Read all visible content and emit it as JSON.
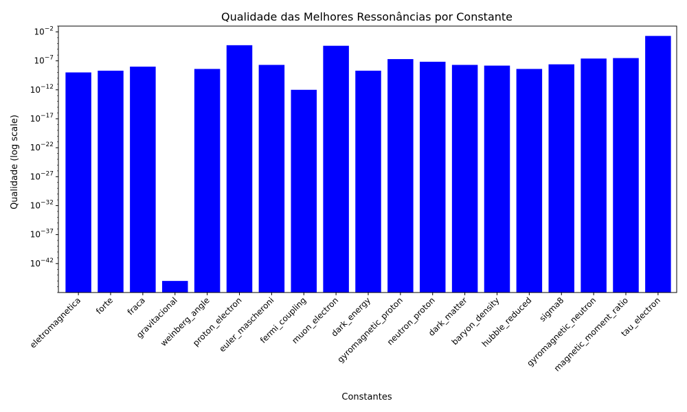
{
  "chart_data": {
    "type": "bar",
    "title": "Qualidade das Melhores Ressonâncias por Constante",
    "xlabel": "Constantes",
    "ylabel": "Qualidade (log scale)",
    "yscale": "log",
    "ylim": [
      1e-47,
      0.1
    ],
    "yticks": [
      {
        "value": 0.01,
        "base": "10",
        "exp": "−2"
      },
      {
        "value": 1e-07,
        "base": "10",
        "exp": "−7"
      },
      {
        "value": 1e-12,
        "base": "10",
        "exp": "−12"
      },
      {
        "value": 1e-17,
        "base": "10",
        "exp": "−17"
      },
      {
        "value": 1e-22,
        "base": "10",
        "exp": "−22"
      },
      {
        "value": 1e-27,
        "base": "10",
        "exp": "−27"
      },
      {
        "value": 1e-32,
        "base": "10",
        "exp": "−32"
      },
      {
        "value": 1e-37,
        "base": "10",
        "exp": "−37"
      },
      {
        "value": 1e-42,
        "base": "10",
        "exp": "−42"
      }
    ],
    "bar_color": "#0000ff",
    "grid": false,
    "categories": [
      "eletromagnetica",
      "forte",
      "fraca",
      "gravitacional",
      "weinberg_angle",
      "proton_electron",
      "euler_mascheroni",
      "fermi_coupling",
      "muon_electron",
      "dark_energy",
      "gyromagnetic_proton",
      "neutron_proton",
      "dark_matter",
      "baryon_density",
      "hubble_reduced",
      "sigma8",
      "gyromagnetic_neutron",
      "magnetic_moment_ratio",
      "tau_electron"
    ],
    "values": [
      1e-09,
      2e-09,
      1e-08,
      1e-45,
      4e-09,
      5e-05,
      2e-08,
      1e-12,
      4e-05,
      2e-09,
      2e-07,
      7e-08,
      2e-08,
      1.5e-08,
      4e-09,
      2.5e-08,
      2.5e-07,
      3e-07,
      0.002
    ]
  }
}
